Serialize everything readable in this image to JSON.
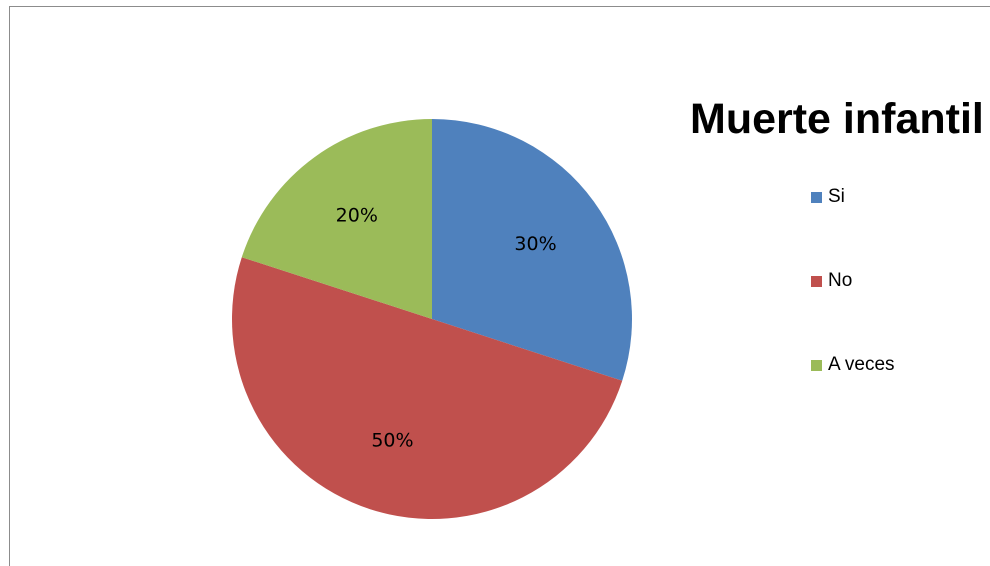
{
  "chart_data": {
    "type": "pie",
    "title": "Muerte infantil",
    "categories": [
      "Si",
      "No",
      "A veces"
    ],
    "values": [
      30,
      50,
      20
    ],
    "data_labels": [
      "30%",
      "50%",
      "20%"
    ],
    "colors": [
      "#4f81bd",
      "#c0504d",
      "#9bbb59"
    ],
    "legend_position": "right",
    "start_angle": "top, clockwise"
  }
}
